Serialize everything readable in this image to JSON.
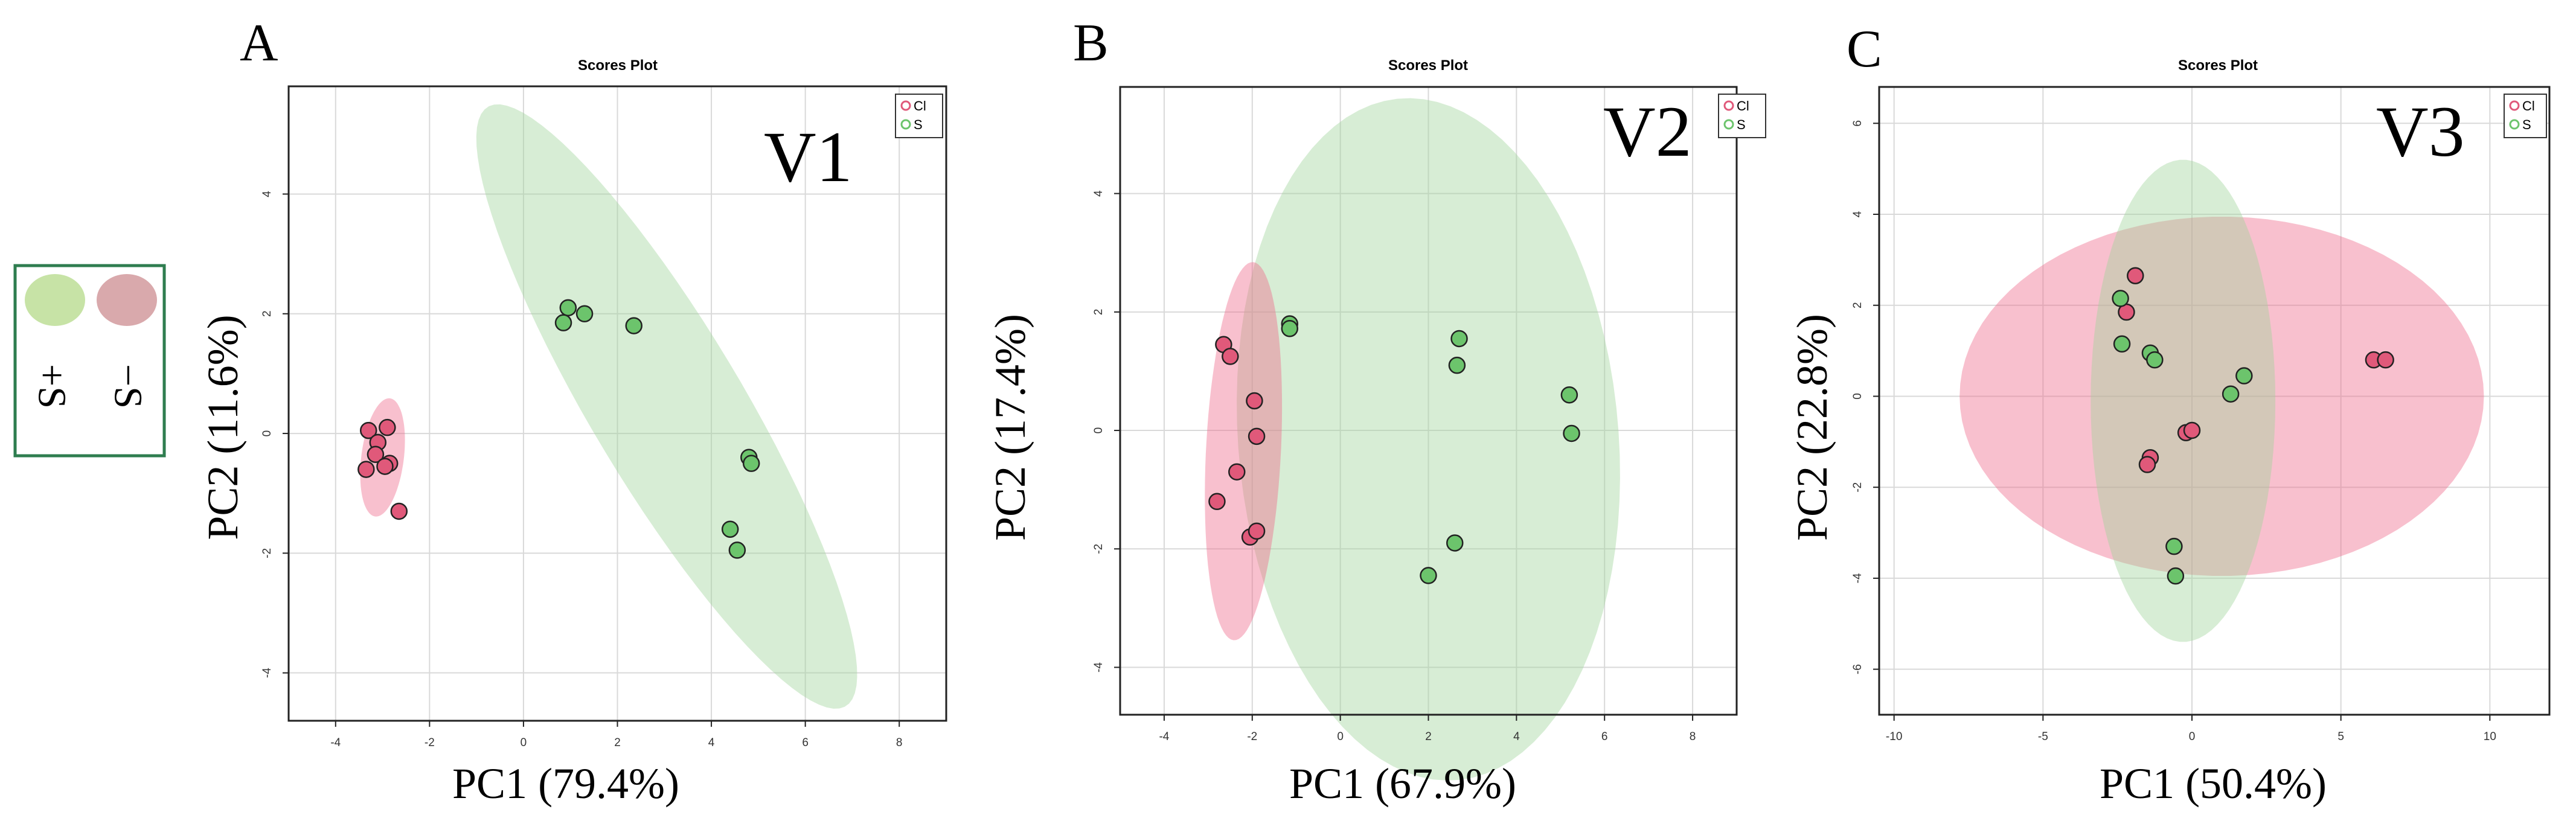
{
  "legend_box": {
    "items": [
      {
        "label": "+S",
        "color": "#c7e3a6"
      },
      {
        "label": "−S",
        "color": "#d9a9ac"
      }
    ],
    "border_color": "#2e7d4f"
  },
  "colors": {
    "Cl_point": "#e0597a",
    "S_point": "#6cc46c",
    "Cl_ellipse": "#ef6a8a",
    "S_ellipse": "#9fd49a"
  },
  "chart_data": [
    {
      "type": "scatter",
      "panel_label": "A",
      "title": "Scores Plot",
      "annotation": "V1",
      "xlabel": "PC1 (79.4%)",
      "ylabel": "PC2 (11.6%)",
      "xlim": [
        -5,
        9
      ],
      "ylim": [
        -4.8,
        5.8
      ],
      "xticks": [
        -4,
        -2,
        0,
        2,
        4,
        6,
        8
      ],
      "yticks": [
        -4,
        -2,
        0,
        2,
        4
      ],
      "grid": true,
      "legend": {
        "position": "top-right",
        "entries": [
          "Cl",
          "S"
        ]
      },
      "series": [
        {
          "name": "Cl",
          "points": [
            [
              -3.3,
              0.05
            ],
            [
              -2.9,
              0.1
            ],
            [
              -3.1,
              -0.15
            ],
            [
              -3.15,
              -0.35
            ],
            [
              -2.85,
              -0.5
            ],
            [
              -2.95,
              -0.55
            ],
            [
              -3.35,
              -0.6
            ],
            [
              -2.65,
              -1.3
            ]
          ]
        },
        {
          "name": "S",
          "points": [
            [
              0.95,
              2.1
            ],
            [
              1.3,
              2.0
            ],
            [
              0.85,
              1.85
            ],
            [
              2.35,
              1.8
            ],
            [
              4.8,
              -0.4
            ],
            [
              4.85,
              -0.5
            ],
            [
              4.4,
              -1.6
            ],
            [
              4.55,
              -1.95
            ]
          ]
        }
      ],
      "ellipses": [
        {
          "group": "Cl",
          "cx": -3.0,
          "cy": -0.4,
          "rx": 1.0,
          "ry": 0.45,
          "angle": 80
        },
        {
          "group": "S",
          "cx": 3.05,
          "cy": 0.45,
          "rx": 6.3,
          "ry": 1.5,
          "angle": -52
        }
      ]
    },
    {
      "type": "scatter",
      "panel_label": "B",
      "title": "Scores Plot",
      "annotation": "V2",
      "xlabel": "PC1 (67.9%)",
      "ylabel": "PC2 (17.4%)",
      "xlim": [
        -5,
        9
      ],
      "ylim": [
        -4.8,
        5.8
      ],
      "xticks": [
        -4,
        -2,
        0,
        2,
        4,
        6,
        8
      ],
      "yticks": [
        -4,
        -2,
        0,
        2,
        4
      ],
      "grid": true,
      "legend": {
        "position": "top-right",
        "entries": [
          "Cl",
          "S"
        ]
      },
      "series": [
        {
          "name": "Cl",
          "points": [
            [
              -2.65,
              1.45
            ],
            [
              -2.5,
              1.25
            ],
            [
              -1.95,
              0.5
            ],
            [
              -1.9,
              -0.1
            ],
            [
              -2.35,
              -0.7
            ],
            [
              -2.8,
              -1.2
            ],
            [
              -2.05,
              -1.8
            ],
            [
              -1.9,
              -1.7
            ]
          ]
        },
        {
          "name": "S",
          "points": [
            [
              -1.15,
              1.8
            ],
            [
              -1.15,
              1.72
            ],
            [
              2.7,
              1.55
            ],
            [
              2.65,
              1.1
            ],
            [
              5.2,
              0.6
            ],
            [
              5.25,
              -0.05
            ],
            [
              2.6,
              -1.9
            ],
            [
              2.0,
              -2.45
            ]
          ]
        }
      ],
      "ellipses": [
        {
          "group": "S",
          "cx": 2.0,
          "cy": -0.15,
          "rx": 5.8,
          "ry": 4.3,
          "angle": -80
        },
        {
          "group": "Cl",
          "cx": -2.2,
          "cy": -0.35,
          "rx": 3.2,
          "ry": 0.85,
          "angle": 86
        }
      ]
    },
    {
      "type": "scatter",
      "panel_label": "C",
      "title": "Scores Plot",
      "annotation": "V3",
      "xlabel": "PC1 (50.4%)",
      "ylabel": "PC2 (22.8%)",
      "xlim": [
        -10.5,
        12
      ],
      "ylim": [
        -7,
        6.8
      ],
      "xticks": [
        -10,
        -5,
        0,
        5,
        10
      ],
      "yticks": [
        -6,
        -4,
        -2,
        0,
        2,
        4,
        6
      ],
      "grid": true,
      "legend": {
        "position": "top-right",
        "entries": [
          "Cl",
          "S"
        ]
      },
      "series": [
        {
          "name": "Cl",
          "points": [
            [
              -1.9,
              2.65
            ],
            [
              -2.2,
              1.85
            ],
            [
              -1.4,
              -1.35
            ],
            [
              -1.5,
              -1.5
            ],
            [
              -0.2,
              -0.8
            ],
            [
              0.0,
              -0.75
            ],
            [
              6.1,
              0.8
            ],
            [
              6.5,
              0.8
            ]
          ]
        },
        {
          "name": "S",
          "points": [
            [
              -2.4,
              2.15
            ],
            [
              -2.35,
              1.15
            ],
            [
              -1.4,
              0.95
            ],
            [
              -1.25,
              0.8
            ],
            [
              1.75,
              0.45
            ],
            [
              1.3,
              0.05
            ],
            [
              -0.6,
              -3.3
            ],
            [
              -0.55,
              -3.95
            ]
          ]
        }
      ],
      "ellipses": [
        {
          "group": "Cl",
          "cx": 1.0,
          "cy": 0.0,
          "rx": 8.8,
          "ry": 3.95,
          "angle": 0
        },
        {
          "group": "S",
          "cx": -0.3,
          "cy": -0.1,
          "rx": 3.1,
          "ry": 5.3,
          "angle": 0
        }
      ]
    }
  ]
}
